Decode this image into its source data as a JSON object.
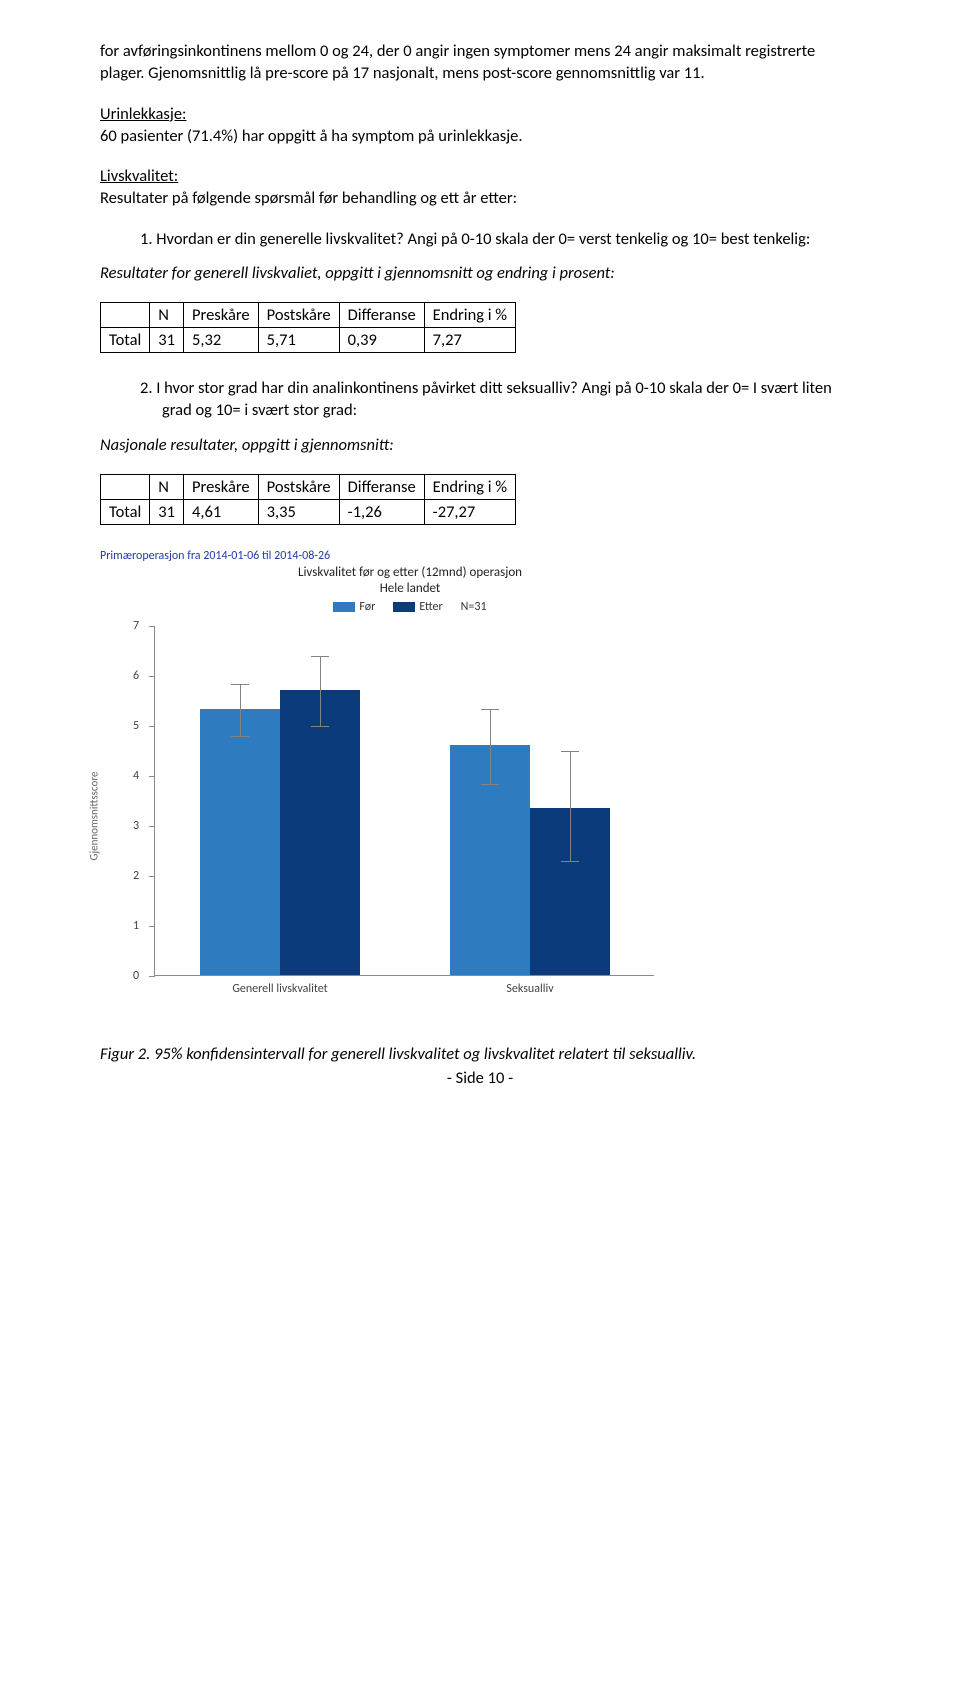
{
  "intro": {
    "p1": "for avføringsinkontinens mellom 0 og 24, der 0 angir ingen symptomer mens 24 angir maksimalt registrerte plager. Gjenomsnittlig lå pre-score på 17 nasjonalt, mens post-score gennomsnittlig var 11.",
    "p2a": "Urinlekkasje:",
    "p2b": "60 pasienter (71.4%) har oppgitt å ha symptom på urinlekkasje.",
    "p3a": "Livskvalitet:",
    "p3b": "Resultater på følgende spørsmål før behandling og ett år etter:",
    "li1": "1.  Hvordan er din generelle livskvalitet? Angi på 0-10 skala der 0= verst tenkelig og 10= best tenkelig:",
    "subhead1": "Resultater for generell livskvaliet, oppgitt i gjennomsnitt og endring i prosent:",
    "li2": "2.  I hvor stor grad har din analinkontinens påvirket ditt seksualliv? Angi på 0-10 skala der 0= I svært liten grad og 10= i svært stor grad:",
    "subhead2": "Nasjonale resultater, oppgitt i gjennomsnitt:"
  },
  "table_headers": {
    "n": "N",
    "pre": "Preskåre",
    "post": "Postskåre",
    "diff": "Differanse",
    "chg": "Endring i %",
    "total": "Total"
  },
  "table1": {
    "n": "31",
    "pre": "5,32",
    "post": "5,71",
    "diff": "0,39",
    "chg": "7,27"
  },
  "table2": {
    "n": "31",
    "pre": "4,61",
    "post": "3,35",
    "diff": "-1,26",
    "chg": "-27,27"
  },
  "chart": {
    "supertitle": "Primæroperasjon fra 2014-01-06 til 2014-08-26",
    "title_l1": "Livskvalitet før og etter (12mnd) operasjon",
    "title_l2": "Hele landet",
    "legend_for": "Før",
    "legend_etter": "Etter",
    "legend_n": "N=31",
    "ylabel": "Gjennomsnittsscore",
    "y_min": 0,
    "y_max": 7,
    "y_ticks": [
      0,
      1,
      2,
      3,
      4,
      5,
      6,
      7
    ],
    "colors": {
      "for": "#2f7bbf",
      "etter": "#0b3b7a",
      "err": "#838383",
      "axis": "#8a8a8a"
    },
    "groups": [
      {
        "label": "Generell livskvalitet",
        "bars": [
          {
            "series": "for",
            "value": 5.32,
            "err_low": 4.8,
            "err_high": 5.85
          },
          {
            "series": "etter",
            "value": 5.71,
            "err_low": 5.0,
            "err_high": 6.4
          }
        ]
      },
      {
        "label": "Seksualliv",
        "bars": [
          {
            "series": "for",
            "value": 4.61,
            "err_low": 3.85,
            "err_high": 5.35
          },
          {
            "series": "etter",
            "value": 3.35,
            "err_low": 2.3,
            "err_high": 4.5
          }
        ]
      }
    ]
  },
  "caption": "Figur 2. 95% konfidensintervall for generell livskvalitet og livskvalitet relatert til seksualliv.",
  "footer": "-  Side 10  -"
}
